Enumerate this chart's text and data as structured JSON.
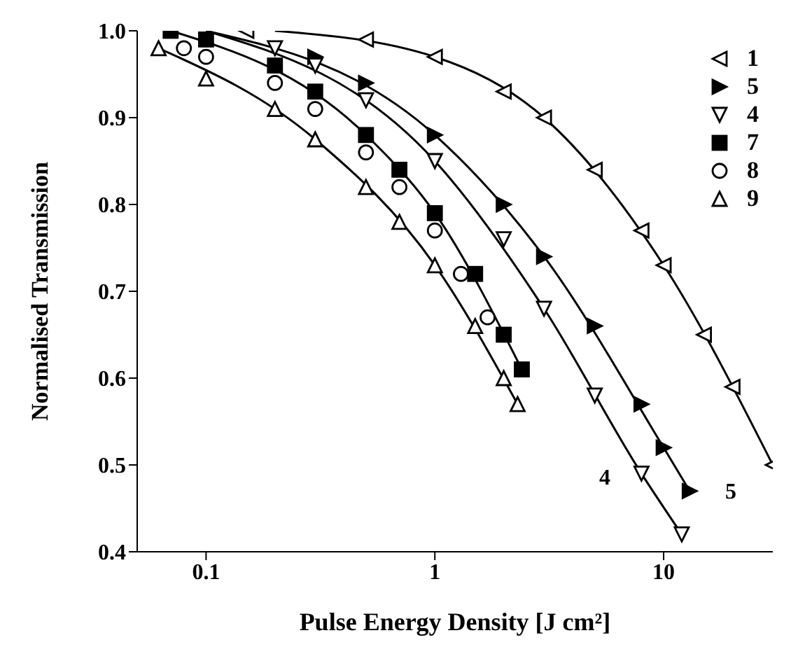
{
  "chart_data": {
    "type": "scatter",
    "xlabel": "Pulse Energy Density [J cm²]",
    "ylabel": "Normalised Transmission",
    "log": "x",
    "xlim": [
      0.05,
      30
    ],
    "xticks": [
      0.1,
      1,
      10
    ],
    "ylim": [
      0.4,
      1.0
    ],
    "yticks": [
      0.4,
      0.5,
      0.6,
      0.7,
      0.8,
      0.9,
      {
        "value": 1.0,
        "label": "1.0"
      }
    ],
    "grid": false,
    "legend": "top right",
    "annotations": [
      "4",
      "5"
    ],
    "series": [
      {
        "name": "1",
        "color": "#000000",
        "marker": "triangle-left",
        "x": [
          0.15,
          0.5,
          1,
          2,
          3,
          5,
          8,
          10,
          15,
          20,
          30
        ],
        "values": [
          1.0,
          0.99,
          0.97,
          0.93,
          0.9,
          0.84,
          0.77,
          0.73,
          0.65,
          0.59,
          0.5
        ]
      },
      {
        "name": "5",
        "color": "#000000",
        "marker": "triangle-right-filled",
        "x": [
          0.3,
          0.5,
          1,
          2,
          3,
          5,
          8,
          10,
          13
        ],
        "values": [
          0.97,
          0.94,
          0.88,
          0.8,
          0.74,
          0.66,
          0.57,
          0.52,
          0.47
        ]
      },
      {
        "name": "4",
        "color": "#000000",
        "marker": "triangle-down",
        "x": [
          0.2,
          0.3,
          0.5,
          1,
          2,
          3,
          5,
          8,
          12
        ],
        "values": [
          0.98,
          0.96,
          0.92,
          0.85,
          0.76,
          0.68,
          0.58,
          0.49,
          0.42
        ]
      },
      {
        "name": "7",
        "color": "#000000",
        "marker": "square-filled",
        "x": [
          0.07,
          0.1,
          0.2,
          0.3,
          0.5,
          0.7,
          1,
          1.5,
          2,
          2.4
        ],
        "values": [
          1.0,
          0.99,
          0.96,
          0.93,
          0.88,
          0.84,
          0.79,
          0.72,
          0.65,
          0.61
        ]
      },
      {
        "name": "8",
        "color": "#000000",
        "marker": "circle",
        "x": [
          0.08,
          0.1,
          0.2,
          0.3,
          0.5,
          0.7,
          1,
          1.3,
          1.7
        ],
        "values": [
          0.98,
          0.97,
          0.94,
          0.91,
          0.86,
          0.82,
          0.77,
          0.72,
          0.67
        ]
      },
      {
        "name": "9",
        "color": "#000000",
        "marker": "triangle",
        "x": [
          0.062,
          0.1,
          0.2,
          0.3,
          0.5,
          0.7,
          1,
          1.5,
          2,
          2.3
        ],
        "values": [
          0.98,
          0.945,
          0.91,
          0.875,
          0.82,
          0.78,
          0.73,
          0.66,
          0.6,
          0.57
        ]
      },
      {
        "type": "line",
        "color": "#000000",
        "x": [
          0.2,
          1,
          3,
          10,
          30
        ],
        "values": [
          1.0,
          0.97,
          0.9,
          0.73,
          0.5
        ]
      },
      {
        "type": "line",
        "color": "#000000",
        "x": [
          0.1,
          1,
          3,
          10,
          13
        ],
        "values": [
          1.0,
          0.88,
          0.74,
          0.52,
          0.47
        ]
      },
      {
        "type": "line",
        "color": "#000000",
        "x": [
          0.1,
          1,
          3,
          8,
          12
        ],
        "values": [
          1.0,
          0.85,
          0.68,
          0.49,
          0.42
        ]
      },
      {
        "type": "line",
        "color": "#000000",
        "x": [
          0.07,
          0.5,
          1,
          2.4
        ],
        "values": [
          1.0,
          0.88,
          0.79,
          0.61
        ]
      },
      {
        "type": "line",
        "color": "#000000",
        "x": [
          0.062,
          0.3,
          1,
          2.3
        ],
        "values": [
          0.98,
          0.875,
          0.73,
          0.57
        ]
      }
    ]
  }
}
